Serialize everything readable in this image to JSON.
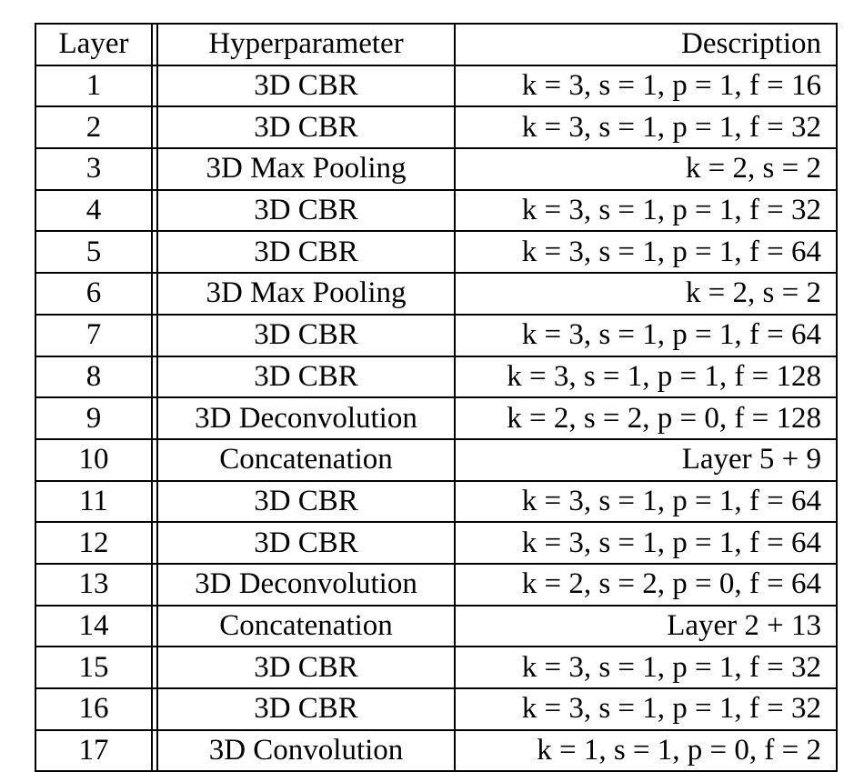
{
  "table": {
    "headers": {
      "layer": "Layer",
      "hyperparameter": "Hyperparameter",
      "description": "Description"
    },
    "rows": [
      {
        "layer": "1",
        "hyperparameter": "3D CBR",
        "description": "k = 3, s = 1, p = 1, f = 16"
      },
      {
        "layer": "2",
        "hyperparameter": "3D CBR",
        "description": "k = 3, s = 1, p = 1, f = 32"
      },
      {
        "layer": "3",
        "hyperparameter": "3D Max Pooling",
        "description": "k = 2, s = 2"
      },
      {
        "layer": "4",
        "hyperparameter": "3D CBR",
        "description": "k = 3, s = 1, p = 1, f = 32"
      },
      {
        "layer": "5",
        "hyperparameter": "3D CBR",
        "description": "k = 3, s = 1, p = 1, f = 64"
      },
      {
        "layer": "6",
        "hyperparameter": "3D Max Pooling",
        "description": "k = 2, s = 2"
      },
      {
        "layer": "7",
        "hyperparameter": "3D CBR",
        "description": "k = 3, s = 1, p = 1, f = 64"
      },
      {
        "layer": "8",
        "hyperparameter": "3D CBR",
        "description": "k = 3, s = 1, p = 1, f = 128"
      },
      {
        "layer": "9",
        "hyperparameter": "3D Deconvolution",
        "description": "k = 2, s = 2, p = 0, f = 128"
      },
      {
        "layer": "10",
        "hyperparameter": "Concatenation",
        "description": "Layer 5 + 9"
      },
      {
        "layer": "11",
        "hyperparameter": "3D CBR",
        "description": "k = 3, s = 1, p = 1, f = 64"
      },
      {
        "layer": "12",
        "hyperparameter": "3D CBR",
        "description": "k = 3, s = 1, p = 1, f = 64"
      },
      {
        "layer": "13",
        "hyperparameter": "3D Deconvolution",
        "description": "k = 2, s = 2, p = 0, f = 64"
      },
      {
        "layer": "14",
        "hyperparameter": "Concatenation",
        "description": "Layer 2 + 13"
      },
      {
        "layer": "15",
        "hyperparameter": "3D CBR",
        "description": "k = 3, s = 1, p = 1, f = 32"
      },
      {
        "layer": "16",
        "hyperparameter": "3D CBR",
        "description": "k = 3, s = 1, p = 1, f = 32"
      },
      {
        "layer": "17",
        "hyperparameter": "3D Convolution",
        "description": "k = 1, s = 1, p = 0, f = 2"
      }
    ]
  }
}
